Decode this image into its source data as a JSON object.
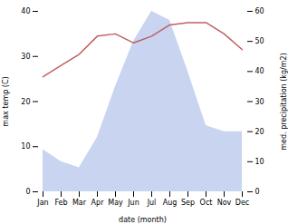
{
  "chart_data": {
    "type": "line",
    "categories": [
      "Jan",
      "Feb",
      "Mar",
      "Apr",
      "May",
      "Jun",
      "Jul",
      "Aug",
      "Sep",
      "Oct",
      "Nov",
      "Dec"
    ],
    "series": [
      {
        "type": "area",
        "axis": "y2",
        "color": "#c8d4f0",
        "values": [
          14,
          10,
          8,
          18,
          35,
          50,
          60,
          57,
          40,
          22,
          20,
          20
        ]
      },
      {
        "type": "line",
        "color": "#c06060",
        "values": [
          25.5,
          28.0,
          30.5,
          34.5,
          35.0,
          33.0,
          34.5,
          37.0,
          37.5,
          37.5,
          35.0,
          31.5
        ]
      }
    ],
    "xlabel": "date (month)",
    "ylabel": "max temp (C)",
    "y2label": "med. precipitation (kg/m2)",
    "ylim": [
      0,
      40
    ],
    "yticks": [
      0,
      10,
      20,
      30,
      40
    ],
    "y2lim": [
      0,
      60
    ],
    "y2ticks": [
      0,
      10,
      20,
      30,
      40,
      50,
      60
    ],
    "grid": false
  }
}
